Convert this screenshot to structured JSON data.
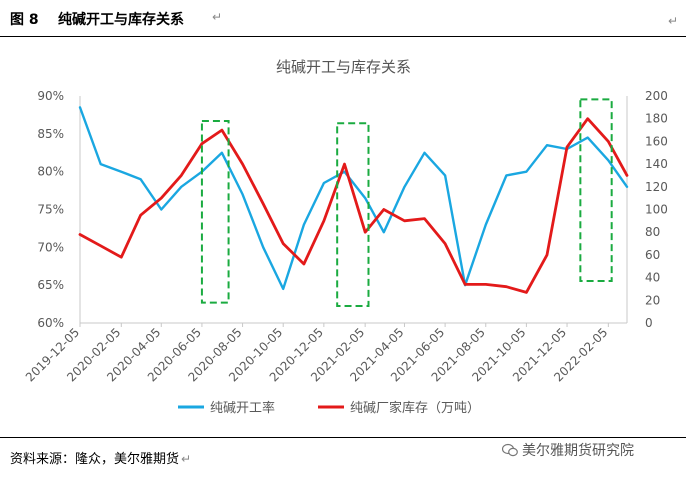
{
  "figure": {
    "number": "图 8",
    "title": "纯碱开工与库存关系",
    "source": "资料来源：隆众，美尔雅期货",
    "watermark": "美尔雅期货研究院",
    "return_mark": "↵"
  },
  "chart_data": {
    "type": "line",
    "title": "纯碱开工与库存关系",
    "x_dates": [
      "2019-12-05",
      "2020-01-05",
      "2020-02-05",
      "2020-03-05",
      "2020-04-05",
      "2020-05-05",
      "2020-06-05",
      "2020-07-05",
      "2020-08-05",
      "2020-09-05",
      "2020-10-05",
      "2020-11-05",
      "2020-12-05",
      "2021-01-05",
      "2021-02-05",
      "2021-03-05",
      "2021-04-05",
      "2021-05-05",
      "2021-06-05",
      "2021-07-05",
      "2021-08-05",
      "2021-09-05",
      "2021-10-05",
      "2021-11-05",
      "2021-12-05",
      "2022-01-05",
      "2022-02-05",
      "2022-03-05"
    ],
    "x_tick_labels": [
      "2019-12-05",
      "2020-02-05",
      "2020-04-05",
      "2020-06-05",
      "2020-08-05",
      "2020-10-05",
      "2020-12-05",
      "2021-02-05",
      "2021-04-05",
      "2021-06-05",
      "2021-08-05",
      "2021-10-05",
      "2021-12-05",
      "2022-02-05"
    ],
    "y_left": {
      "min": 60,
      "max": 90,
      "step": 5,
      "unit": "%",
      "tick_labels": [
        "60%",
        "65%",
        "70%",
        "75%",
        "80%",
        "85%",
        "90%"
      ]
    },
    "y_right": {
      "min": 0,
      "max": 200,
      "step": 20,
      "tick_labels": [
        "0",
        "20",
        "40",
        "60",
        "80",
        "100",
        "120",
        "140",
        "160",
        "180",
        "200"
      ]
    },
    "series": [
      {
        "name": "纯碱开工率",
        "axis": "left",
        "color": "#1aa7e1",
        "values": [
          88.5,
          81.0,
          80.0,
          79.0,
          75.0,
          78.0,
          80.0,
          82.5,
          77.0,
          70.0,
          64.5,
          73.0,
          78.5,
          80.0,
          76.5,
          72.0,
          78.0,
          82.5,
          79.5,
          65.0,
          73.0,
          79.5,
          80.0,
          83.5,
          83.0,
          84.5,
          81.5,
          78.0
        ]
      },
      {
        "name": "纯碱厂家库存（万吨）",
        "axis": "right",
        "color": "#e31a1a",
        "values": [
          78.0,
          68.0,
          58.0,
          95.0,
          110.0,
          130.0,
          158.0,
          170.0,
          140.0,
          105.0,
          70.0,
          52.0,
          90.0,
          140.0,
          80.0,
          100.0,
          90.0,
          92.0,
          70.0,
          34.0,
          34.0,
          32.0,
          27.0,
          60.0,
          155.0,
          180.0,
          160.0,
          130.0
        ]
      }
    ],
    "legend": {
      "position": "bottom"
    },
    "grid": false,
    "annotations": [
      {
        "type": "dashed-box",
        "color": "#1aab40",
        "x_from": "2020-06-05",
        "x_to": "2020-07-15",
        "y_right_from": 18,
        "y_right_to": 178
      },
      {
        "type": "dashed-box",
        "color": "#1aab40",
        "x_from": "2020-12-25",
        "x_to": "2021-02-10",
        "y_right_from": 15,
        "y_right_to": 176
      },
      {
        "type": "dashed-box",
        "color": "#1aab40",
        "x_from": "2021-12-25",
        "x_to": "2022-02-10",
        "y_right_from": 37,
        "y_right_to": 197
      }
    ]
  }
}
